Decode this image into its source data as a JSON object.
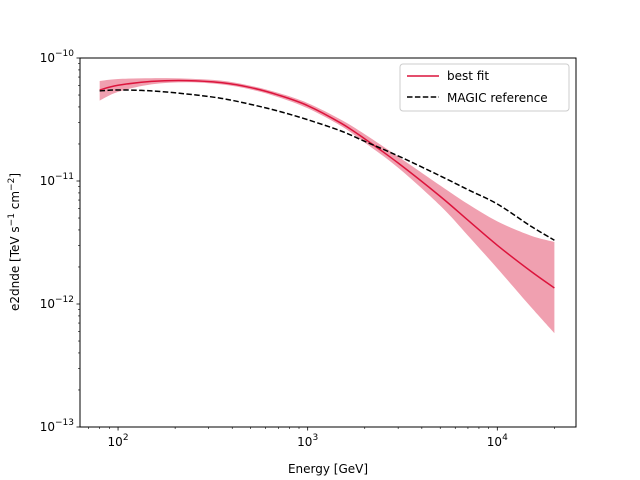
{
  "chart_data": {
    "type": "line",
    "title": "",
    "xlabel": "Energy [GeV]",
    "ylabel": {
      "main": "e2dnde [TeV s",
      "exp1": "−1",
      "mid": " cm",
      "exp2": "−2",
      "end": "]"
    },
    "xscale": "log",
    "yscale": "log",
    "xlim": [
      63,
      26000
    ],
    "ylim": [
      1e-13,
      1e-10
    ],
    "x_ticks": [
      {
        "value": 100,
        "base": "10",
        "exp": "2"
      },
      {
        "value": 1000,
        "base": "10",
        "exp": "3"
      },
      {
        "value": 10000,
        "base": "10",
        "exp": "4"
      }
    ],
    "y_ticks": [
      {
        "value": 1e-13,
        "base": "10",
        "exp": "−13"
      },
      {
        "value": 1e-12,
        "base": "10",
        "exp": "−12"
      },
      {
        "value": 1e-11,
        "base": "10",
        "exp": "−11"
      },
      {
        "value": 1e-10,
        "base": "10",
        "exp": "−10"
      }
    ],
    "legend": {
      "position": "top-right"
    },
    "series": [
      {
        "name": "best fit",
        "style": "solid",
        "color": "#dc143c",
        "x": [
          80,
          100,
          150,
          230,
          350,
          500,
          700,
          1000,
          1500,
          2000,
          3000,
          5000,
          7000,
          10000,
          15000,
          20000
        ],
        "y": [
          5.5e-11,
          6e-11,
          6.45e-11,
          6.55e-11,
          6.3e-11,
          5.75e-11,
          5e-11,
          4.1e-11,
          2.95e-11,
          2.2e-11,
          1.4e-11,
          7.5e-12,
          4.8e-12,
          3e-12,
          1.85e-12,
          1.35e-12
        ]
      },
      {
        "name": "MAGIC reference",
        "style": "dashed",
        "color": "#000000",
        "x": [
          80,
          100,
          150,
          230,
          350,
          500,
          700,
          1000,
          1500,
          2000,
          3000,
          5000,
          7000,
          10000,
          15000,
          20000
        ],
        "y": [
          5.4e-11,
          5.5e-11,
          5.4e-11,
          5.1e-11,
          4.7e-11,
          4.2e-11,
          3.7e-11,
          3.15e-11,
          2.55e-11,
          2.1e-11,
          1.6e-11,
          1.1e-11,
          8.5e-12,
          6.5e-12,
          4.3e-12,
          3.3e-12
        ]
      }
    ],
    "band": {
      "color": "#f0a0b0",
      "x": [
        80,
        100,
        150,
        230,
        350,
        500,
        700,
        1000,
        1500,
        2000,
        3000,
        5000,
        7000,
        10000,
        15000,
        20000
      ],
      "lower": [
        4.5e-11,
        5.3e-11,
        6.1e-11,
        6.35e-11,
        6.1e-11,
        5.55e-11,
        4.8e-11,
        3.9e-11,
        2.8e-11,
        2.05e-11,
        1.28e-11,
        6.3e-12,
        3.6e-12,
        1.95e-12,
        9.5e-13,
        5.8e-13
      ],
      "upper": [
        6.5e-11,
        6.75e-11,
        6.85e-11,
        6.8e-11,
        6.55e-11,
        5.95e-11,
        5.2e-11,
        4.3e-11,
        3.15e-11,
        2.4e-11,
        1.58e-11,
        9.2e-12,
        6.5e-12,
        4.7e-12,
        3.6e-12,
        3.2e-12
      ]
    }
  }
}
